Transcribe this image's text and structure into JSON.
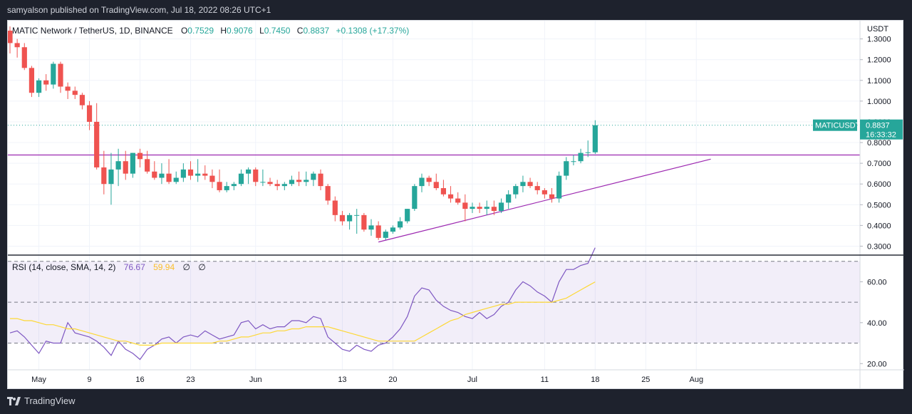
{
  "publisher_line": "samyalson published on TradingView.com, Jul 18, 2022 08:26 UTC+1",
  "brand": "TradingView",
  "legend": {
    "symbol": "MATIC Network / TetherUS, 1D, BINANCE",
    "open_label": "O",
    "open": "0.7529",
    "high_label": "H",
    "high": "0.9076",
    "low_label": "L",
    "low": "0.7450",
    "close_label": "C",
    "close": "0.8837",
    "change": "+0.1308 (+17.37%)"
  },
  "price_axis": {
    "currency": "USDT",
    "ticks": [
      "1.3000",
      "1.2000",
      "1.1000",
      "1.0000",
      "0.9000",
      "0.8000",
      "0.7000",
      "0.6000",
      "0.5000",
      "0.4000",
      "0.3000"
    ]
  },
  "price_label": {
    "ticker": "MATICUSDT",
    "price": "0.8837",
    "countdown": "16:33:32"
  },
  "rsi_legend": {
    "label": "RSI (14, close, SMA, 14, 2)",
    "rsi": "76.67",
    "sma": "59.94",
    "na1": "∅",
    "na2": "∅"
  },
  "rsi_axis": {
    "ticks": [
      "60.00",
      "40.00",
      "20.00"
    ]
  },
  "time_axis": [
    "May",
    "9",
    "16",
    "23",
    "Jun",
    "13",
    "20",
    "Jul",
    "11",
    "18",
    "25",
    "Aug"
  ],
  "colors": {
    "up": "#26a69a",
    "down": "#ef5350",
    "trendline": "#9c27b0",
    "rsi_line": "#7e57c2",
    "rsi_sma": "#fdd835",
    "rsi_band": "#7e57c2",
    "price_line": "#26a69a"
  },
  "chart_data": [
    {
      "type": "candlestick",
      "title": "MATIC Network / TetherUS, 1D, BINANCE",
      "ylim": [
        0.25,
        1.34
      ],
      "dates": [
        "2022-04-28",
        "2022-04-29",
        "2022-04-30",
        "2022-05-01",
        "2022-05-02",
        "2022-05-03",
        "2022-05-04",
        "2022-05-05",
        "2022-05-06",
        "2022-05-07",
        "2022-05-08",
        "2022-05-09",
        "2022-05-10",
        "2022-05-11",
        "2022-05-12",
        "2022-05-13",
        "2022-05-14",
        "2022-05-15",
        "2022-05-16",
        "2022-05-17",
        "2022-05-18",
        "2022-05-19",
        "2022-05-20",
        "2022-05-21",
        "2022-05-22",
        "2022-05-23",
        "2022-05-24",
        "2022-05-25",
        "2022-05-26",
        "2022-05-27",
        "2022-05-28",
        "2022-05-29",
        "2022-05-30",
        "2022-05-31",
        "2022-06-01",
        "2022-06-02",
        "2022-06-03",
        "2022-06-04",
        "2022-06-05",
        "2022-06-06",
        "2022-06-07",
        "2022-06-08",
        "2022-06-09",
        "2022-06-10",
        "2022-06-11",
        "2022-06-12",
        "2022-06-13",
        "2022-06-14",
        "2022-06-15",
        "2022-06-16",
        "2022-06-17",
        "2022-06-18",
        "2022-06-19",
        "2022-06-20",
        "2022-06-21",
        "2022-06-22",
        "2022-06-23",
        "2022-06-24",
        "2022-06-25",
        "2022-06-26",
        "2022-06-27",
        "2022-06-28",
        "2022-06-29",
        "2022-06-30",
        "2022-07-01",
        "2022-07-02",
        "2022-07-03",
        "2022-07-04",
        "2022-07-05",
        "2022-07-06",
        "2022-07-07",
        "2022-07-08",
        "2022-07-09",
        "2022-07-10",
        "2022-07-11",
        "2022-07-12",
        "2022-07-13",
        "2022-07-14",
        "2022-07-15",
        "2022-07-16",
        "2022-07-17",
        "2022-07-18"
      ],
      "open": [
        1.34,
        1.28,
        1.26,
        1.16,
        1.04,
        1.1,
        1.08,
        1.18,
        1.07,
        1.05,
        1.03,
        0.98,
        0.9,
        0.68,
        0.6,
        0.67,
        0.71,
        0.65,
        0.75,
        0.72,
        0.66,
        0.63,
        0.65,
        0.61,
        0.63,
        0.67,
        0.64,
        0.65,
        0.64,
        0.61,
        0.57,
        0.59,
        0.6,
        0.65,
        0.67,
        0.61,
        0.61,
        0.6,
        0.59,
        0.6,
        0.62,
        0.61,
        0.62,
        0.65,
        0.59,
        0.52,
        0.45,
        0.42,
        0.45,
        0.45,
        0.38,
        0.4,
        0.34,
        0.37,
        0.39,
        0.42,
        0.48,
        0.59,
        0.63,
        0.61,
        0.58,
        0.55,
        0.53,
        0.51,
        0.48,
        0.49,
        0.48,
        0.49,
        0.47,
        0.51,
        0.55,
        0.59,
        0.61,
        0.59,
        0.57,
        0.55,
        0.53,
        0.64,
        0.71,
        0.71,
        0.75,
        0.7529
      ],
      "high": [
        1.36,
        1.3,
        1.28,
        1.17,
        1.11,
        1.13,
        1.19,
        1.19,
        1.09,
        1.07,
        1.04,
        1.0,
        0.99,
        0.76,
        0.75,
        0.77,
        0.76,
        0.75,
        0.77,
        0.76,
        0.71,
        0.7,
        0.72,
        0.66,
        0.7,
        0.71,
        0.72,
        0.69,
        0.67,
        0.67,
        0.61,
        0.61,
        0.67,
        0.68,
        0.68,
        0.67,
        0.63,
        0.62,
        0.61,
        0.64,
        0.66,
        0.66,
        0.66,
        0.67,
        0.6,
        0.54,
        0.47,
        0.46,
        0.48,
        0.46,
        0.43,
        0.42,
        0.38,
        0.4,
        0.44,
        0.48,
        0.6,
        0.65,
        0.64,
        0.65,
        0.62,
        0.59,
        0.56,
        0.55,
        0.51,
        0.51,
        0.52,
        0.52,
        0.53,
        0.57,
        0.6,
        0.64,
        0.63,
        0.61,
        0.58,
        0.58,
        0.66,
        0.73,
        0.74,
        0.77,
        0.81,
        0.9076
      ],
      "low": [
        1.23,
        1.21,
        1.15,
        1.02,
        1.02,
        1.05,
        1.06,
        1.04,
        1.01,
        1.01,
        0.96,
        0.86,
        0.67,
        0.55,
        0.5,
        0.59,
        0.62,
        0.63,
        0.68,
        0.65,
        0.62,
        0.6,
        0.6,
        0.6,
        0.61,
        0.62,
        0.61,
        0.62,
        0.58,
        0.56,
        0.56,
        0.57,
        0.59,
        0.6,
        0.59,
        0.59,
        0.59,
        0.57,
        0.57,
        0.59,
        0.59,
        0.59,
        0.59,
        0.57,
        0.5,
        0.42,
        0.4,
        0.38,
        0.36,
        0.37,
        0.35,
        0.33,
        0.33,
        0.36,
        0.38,
        0.41,
        0.47,
        0.56,
        0.59,
        0.57,
        0.54,
        0.51,
        0.5,
        0.42,
        0.46,
        0.46,
        0.45,
        0.45,
        0.46,
        0.48,
        0.53,
        0.56,
        0.58,
        0.55,
        0.53,
        0.51,
        0.51,
        0.62,
        0.69,
        0.7,
        0.73,
        0.745
      ],
      "close": [
        1.28,
        1.26,
        1.16,
        1.04,
        1.1,
        1.08,
        1.18,
        1.07,
        1.05,
        1.03,
        0.98,
        0.9,
        0.68,
        0.6,
        0.67,
        0.71,
        0.65,
        0.75,
        0.72,
        0.66,
        0.63,
        0.65,
        0.61,
        0.63,
        0.67,
        0.64,
        0.65,
        0.64,
        0.61,
        0.57,
        0.59,
        0.6,
        0.65,
        0.67,
        0.61,
        0.61,
        0.6,
        0.59,
        0.6,
        0.62,
        0.61,
        0.62,
        0.65,
        0.59,
        0.52,
        0.45,
        0.42,
        0.45,
        0.45,
        0.38,
        0.4,
        0.34,
        0.37,
        0.39,
        0.42,
        0.48,
        0.59,
        0.63,
        0.61,
        0.58,
        0.55,
        0.53,
        0.51,
        0.48,
        0.49,
        0.48,
        0.49,
        0.47,
        0.51,
        0.55,
        0.59,
        0.61,
        0.59,
        0.57,
        0.55,
        0.53,
        0.64,
        0.71,
        0.71,
        0.75,
        0.7529,
        0.8837
      ],
      "annotations": [
        {
          "type": "horizontal_line",
          "y": 0.74
        },
        {
          "type": "trendline",
          "from": [
            "2022-06-18",
            0.32
          ],
          "to": [
            "2022-08-03",
            0.72
          ]
        }
      ]
    },
    {
      "type": "line",
      "title": "RSI (14, close, SMA, 14, 2)",
      "ylim": [
        18,
        80
      ],
      "guide_levels": [
        70,
        50,
        30
      ],
      "x": [
        "2022-04-28",
        "2022-04-29",
        "2022-04-30",
        "2022-05-01",
        "2022-05-02",
        "2022-05-03",
        "2022-05-04",
        "2022-05-05",
        "2022-05-06",
        "2022-05-07",
        "2022-05-08",
        "2022-05-09",
        "2022-05-10",
        "2022-05-11",
        "2022-05-12",
        "2022-05-13",
        "2022-05-14",
        "2022-05-15",
        "2022-05-16",
        "2022-05-17",
        "2022-05-18",
        "2022-05-19",
        "2022-05-20",
        "2022-05-21",
        "2022-05-22",
        "2022-05-23",
        "2022-05-24",
        "2022-05-25",
        "2022-05-26",
        "2022-05-27",
        "2022-05-28",
        "2022-05-29",
        "2022-05-30",
        "2022-05-31",
        "2022-06-01",
        "2022-06-02",
        "2022-06-03",
        "2022-06-04",
        "2022-06-05",
        "2022-06-06",
        "2022-06-07",
        "2022-06-08",
        "2022-06-09",
        "2022-06-10",
        "2022-06-11",
        "2022-06-12",
        "2022-06-13",
        "2022-06-14",
        "2022-06-15",
        "2022-06-16",
        "2022-06-17",
        "2022-06-18",
        "2022-06-19",
        "2022-06-20",
        "2022-06-21",
        "2022-06-22",
        "2022-06-23",
        "2022-06-24",
        "2022-06-25",
        "2022-06-26",
        "2022-06-27",
        "2022-06-28",
        "2022-06-29",
        "2022-06-30",
        "2022-07-01",
        "2022-07-02",
        "2022-07-03",
        "2022-07-04",
        "2022-07-05",
        "2022-07-06",
        "2022-07-07",
        "2022-07-08",
        "2022-07-09",
        "2022-07-10",
        "2022-07-11",
        "2022-07-12",
        "2022-07-13",
        "2022-07-14",
        "2022-07-15",
        "2022-07-16",
        "2022-07-17",
        "2022-07-18"
      ],
      "series": [
        {
          "name": "RSI",
          "values": [
            35,
            36,
            33,
            29,
            25,
            31,
            30,
            30,
            40,
            35,
            34,
            33,
            31,
            28,
            24,
            31,
            27,
            25,
            22,
            27,
            29,
            32,
            33,
            30,
            33,
            34,
            33,
            36,
            34,
            32,
            33,
            34,
            40,
            41,
            37,
            39,
            37,
            38,
            38,
            41,
            41,
            40,
            43,
            42,
            33,
            30,
            27,
            26,
            29,
            27,
            26,
            29,
            30,
            33,
            37,
            43,
            53,
            57,
            56,
            51,
            48,
            46,
            45,
            43,
            42,
            45,
            42,
            44,
            48,
            50,
            56,
            60,
            58,
            55,
            53,
            50,
            60,
            66,
            66,
            68,
            69,
            76.67
          ]
        },
        {
          "name": "SMA",
          "values": [
            42,
            42,
            41,
            41,
            40,
            39,
            39,
            38,
            37,
            37,
            36,
            35,
            34,
            33,
            32,
            31,
            31,
            30,
            29,
            29,
            29,
            30,
            30,
            30,
            30,
            30,
            30,
            30,
            30,
            31,
            31,
            32,
            33,
            33,
            34,
            35,
            35,
            36,
            36,
            37,
            37,
            38,
            38,
            38,
            38,
            37,
            36,
            35,
            34,
            33,
            32,
            31,
            31,
            31,
            31,
            31,
            31,
            33,
            35,
            37,
            39,
            41,
            42,
            44,
            45,
            46,
            47,
            48,
            49,
            49,
            50,
            50,
            50,
            50,
            50,
            50,
            51,
            52,
            54,
            56,
            58,
            59.94
          ]
        }
      ]
    }
  ]
}
